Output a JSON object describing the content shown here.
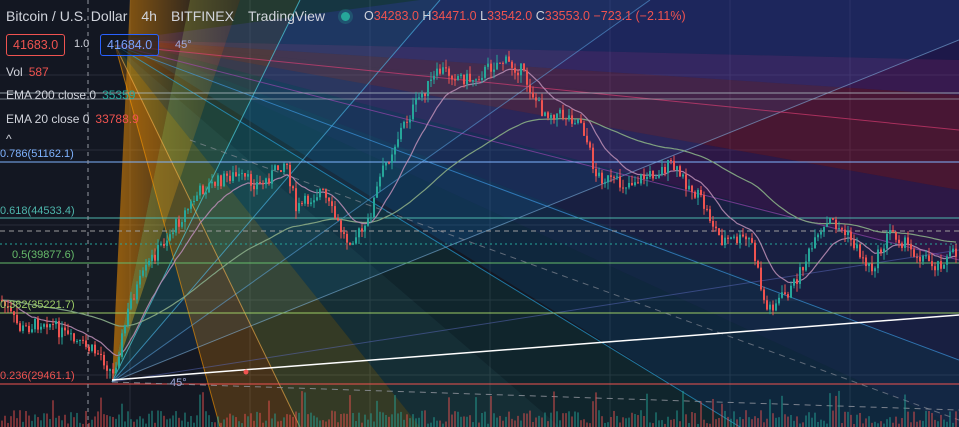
{
  "header": {
    "symbol": "Bitcoin / U.S. Dollar",
    "interval": "4h",
    "exchange": "BITFINEX",
    "source": "TradingView",
    "ohlc": {
      "o_label": "O",
      "o": "34283.0",
      "h_label": "H",
      "h": "34471.0",
      "l_label": "L",
      "l": "33542.0",
      "c_label": "C",
      "c": "33553.0",
      "change": "−723.1 (−2.11%)"
    }
  },
  "trade": {
    "sell": "41683.0",
    "spread": "1.0",
    "buy": "41684.0"
  },
  "indicators": [
    {
      "label": "Vol",
      "value": "587",
      "color": "#ef5350"
    },
    {
      "label": "EMA 200 close 0",
      "value": "35359",
      "color": "#26a69a"
    },
    {
      "label": "EMA 20 close 0",
      "value": "33788.9",
      "color": "#ef5350"
    }
  ],
  "collapse_glyph": "^",
  "fib_labels": [
    {
      "text": "0.786(51162.1)",
      "color": "#7fb3ff"
    },
    {
      "text": "0.618(44533.4)",
      "color": "#4db6ac"
    },
    {
      "text": "0.5(39877.6)",
      "color": "#66bb6a"
    },
    {
      "text": "0.382(35221.7)",
      "color": "#9ccc65"
    },
    {
      "text": "0.236(29461.1)",
      "color": "#ef5350"
    }
  ],
  "angle_labels": [
    "45°",
    "45°"
  ],
  "colors": {
    "background": "#131722",
    "up": "#26a69a",
    "down": "#ef5350",
    "ema200": "#7fa07f",
    "ema20": "#b58ab0",
    "trendline": "#ffffff"
  }
}
